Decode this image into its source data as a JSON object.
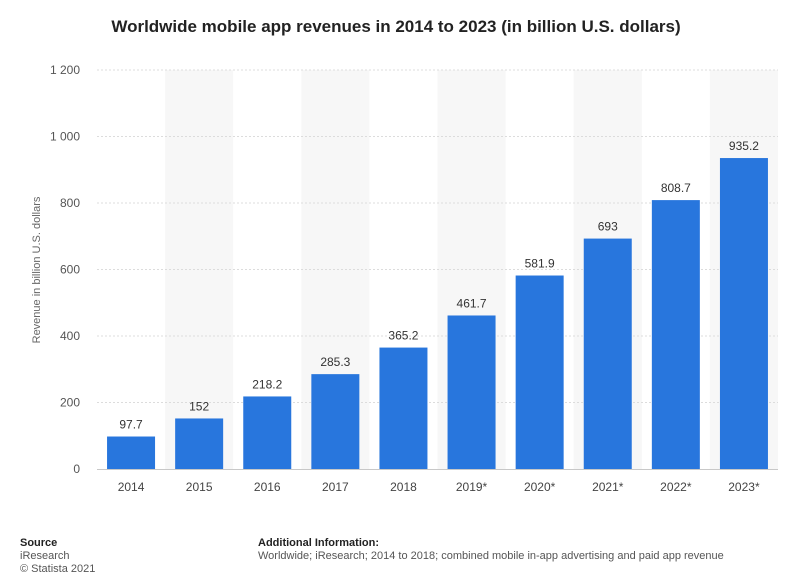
{
  "chart_data": {
    "type": "bar",
    "title": "Worldwide mobile app revenues in 2014 to 2023 (in billion U.S. dollars)",
    "xlabel": "",
    "ylabel": "Revenue in billion U.S. dollars",
    "categories": [
      "2014",
      "2015",
      "2016",
      "2017",
      "2018",
      "2019*",
      "2020*",
      "2021*",
      "2022*",
      "2023*"
    ],
    "values": [
      97.7,
      152,
      218.2,
      285.3,
      365.2,
      461.7,
      581.9,
      693,
      808.7,
      935.2
    ],
    "value_labels": [
      "97.7",
      "152",
      "218.2",
      "285.3",
      "365.2",
      "461.7",
      "581.9",
      "693",
      "808.7",
      "935.2"
    ],
    "ylim": [
      0,
      1200
    ],
    "yticks": [
      0,
      200,
      400,
      600,
      800,
      1000,
      1200
    ],
    "ytick_labels": [
      "0",
      "200",
      "400",
      "600",
      "800",
      "1 000",
      "1 200"
    ],
    "grid": true,
    "bar_color": "#2876dd"
  },
  "footer": {
    "source_heading": "Source",
    "source_name": "iResearch",
    "copyright": "© Statista 2021",
    "info_heading": "Additional Information:",
    "info_text": "Worldwide; iResearch; 2014 to 2018; combined mobile in-app advertising and paid app revenue"
  }
}
